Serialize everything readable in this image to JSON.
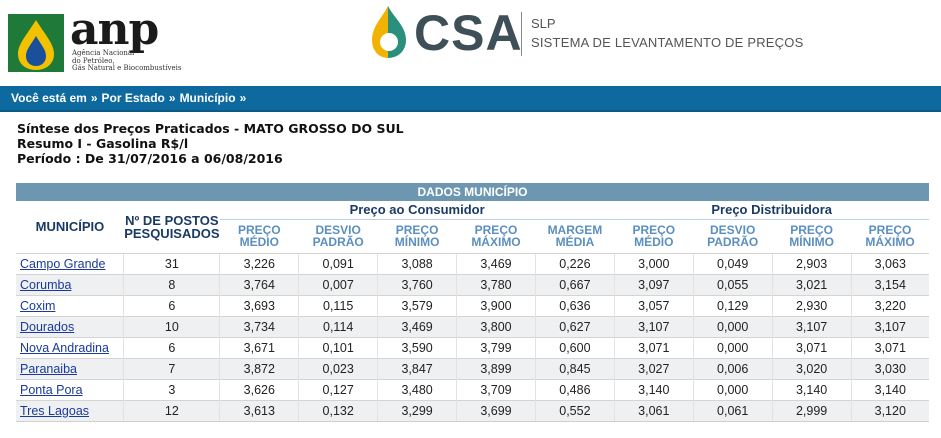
{
  "header": {
    "anp_wordmark": "anp",
    "anp_subtitle_lines": [
      "Agência Nacional",
      "do Petróleo,",
      "Gás Natural e Biocombustíveis"
    ],
    "csa_wordmark": "CSA",
    "slp": "SLP",
    "system_name": "SISTEMA DE LEVANTAMENTO DE PREÇOS"
  },
  "breadcrumb": {
    "items": [
      "Você está em",
      "Por Estado",
      "Município"
    ],
    "separator": "»"
  },
  "summary": {
    "line1": "Síntese dos Preços Praticados - MATO GROSSO DO SUL",
    "line2": "Resumo I - Gasolina R$/l",
    "line3": "Período : De 31/07/2016 a 06/08/2016"
  },
  "table": {
    "caption": "DADOS MUNICÍPIO",
    "col_municipio": "MUNICÍPIO",
    "col_postos": [
      "Nº DE POSTOS",
      "PESQUISADOS"
    ],
    "group_consumidor": "Preço ao Consumidor",
    "group_distribuidora": "Preço Distribuidora",
    "sub_columns": [
      [
        "PREÇO",
        "MÉDIO"
      ],
      [
        "DESVIO",
        "PADRÃO"
      ],
      [
        "PREÇO",
        "MÍNIMO"
      ],
      [
        "PREÇO",
        "MÁXIMO"
      ],
      [
        "MARGEM",
        "MÉDIA"
      ],
      [
        "PREÇO",
        "MÉDIO"
      ],
      [
        "DESVIO",
        "PADRÃO"
      ],
      [
        "PREÇO",
        "MÍNIMO"
      ],
      [
        "PREÇO",
        "MÁXIMO"
      ]
    ],
    "rows": [
      [
        "Campo Grande",
        "31",
        "3,226",
        "0,091",
        "3,088",
        "3,469",
        "0,226",
        "3,000",
        "0,049",
        "2,903",
        "3,063"
      ],
      [
        "Corumba",
        "8",
        "3,764",
        "0,007",
        "3,760",
        "3,780",
        "0,667",
        "3,097",
        "0,055",
        "3,021",
        "3,154"
      ],
      [
        "Coxim",
        "6",
        "3,693",
        "0,115",
        "3,579",
        "3,900",
        "0,636",
        "3,057",
        "0,129",
        "2,930",
        "3,220"
      ],
      [
        "Dourados",
        "10",
        "3,734",
        "0,114",
        "3,469",
        "3,800",
        "0,627",
        "3,107",
        "0,000",
        "3,107",
        "3,107"
      ],
      [
        "Nova Andradina",
        "6",
        "3,671",
        "0,101",
        "3,590",
        "3,799",
        "0,600",
        "3,071",
        "0,000",
        "3,071",
        "3,071"
      ],
      [
        "Paranaiba",
        "7",
        "3,872",
        "0,023",
        "3,847",
        "3,899",
        "0,845",
        "3,027",
        "0,006",
        "3,020",
        "3,030"
      ],
      [
        "Ponta Pora",
        "3",
        "3,626",
        "0,127",
        "3,480",
        "3,709",
        "0,486",
        "3,140",
        "0,000",
        "3,140",
        "3,140"
      ],
      [
        "Tres Lagoas",
        "12",
        "3,613",
        "0,132",
        "3,299",
        "3,699",
        "0,552",
        "3,061",
        "0,061",
        "2,999",
        "3,120"
      ]
    ]
  },
  "colors": {
    "nav_bar": "#0e6a9e",
    "table_caption": "#6d97b0",
    "column_header": "#5b8fc0",
    "group_header": "#1a3a66",
    "link": "#1a3a9a"
  },
  "icons": {
    "anp": "anp-logo-icon",
    "csa": "csa-drop-icon"
  }
}
